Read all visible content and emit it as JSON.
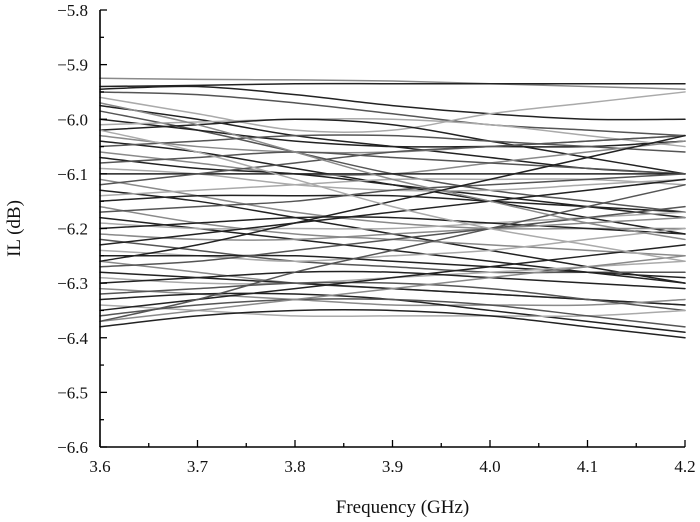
{
  "chart_data": {
    "type": "line",
    "xlabel": "Frequency (GHz)",
    "ylabel": "IL (dB)",
    "xlim": [
      3.6,
      4.2
    ],
    "ylim": [
      -6.6,
      -5.8
    ],
    "x_ticks": [
      3.6,
      3.7,
      3.8,
      3.9,
      4.0,
      4.1,
      4.2
    ],
    "x_tick_labels": [
      "3.6",
      "3.7",
      "3.8",
      "3.9",
      "4.0",
      "4.1",
      "4.2"
    ],
    "y_ticks": [
      -6.6,
      -6.5,
      -6.4,
      -6.3,
      -6.2,
      -6.1,
      -6.0,
      -5.9,
      -5.8
    ],
    "y_tick_labels": [
      "−6.6",
      "−6.5",
      "−6.4",
      "−6.3",
      "−6.2",
      "−6.1",
      "−6.0",
      "−5.9",
      "−5.8"
    ],
    "grid": false,
    "legend": false,
    "colors": {
      "dark": "#222222",
      "mid": "#555555",
      "light": "#8a8a8a",
      "lighter": "#aaaaaa"
    },
    "x": [
      3.6,
      3.7,
      3.8,
      3.9,
      4.0,
      4.1,
      4.2
    ],
    "series": [
      {
        "color": "light",
        "values": [
          -5.925,
          -5.927,
          -5.928,
          -5.93,
          -5.935,
          -5.94,
          -5.945
        ]
      },
      {
        "color": "dark",
        "values": [
          -5.94,
          -5.938,
          -5.935,
          -5.935,
          -5.935,
          -5.935,
          -5.935
        ]
      },
      {
        "color": "dark",
        "values": [
          -5.945,
          -5.94,
          -5.955,
          -5.975,
          -5.99,
          -6.0,
          -6.0
        ]
      },
      {
        "color": "mid",
        "values": [
          -5.95,
          -5.955,
          -5.97,
          -5.99,
          -6.01,
          -6.02,
          -6.03
        ]
      },
      {
        "color": "lighter",
        "values": [
          -5.96,
          -5.99,
          -6.02,
          -6.02,
          -5.99,
          -5.97,
          -5.95
        ]
      },
      {
        "color": "dark",
        "values": [
          -5.975,
          -6.0,
          -6.03,
          -6.05,
          -6.07,
          -6.09,
          -6.1
        ]
      },
      {
        "color": "mid",
        "values": [
          -5.985,
          -6.02,
          -6.06,
          -6.1,
          -6.13,
          -6.15,
          -6.17
        ]
      },
      {
        "color": "dark",
        "values": [
          -6.0,
          -6.02,
          -6.04,
          -6.05,
          -6.05,
          -6.05,
          -6.04
        ]
      },
      {
        "color": "lighter",
        "values": [
          -6.01,
          -6.005,
          -6.0,
          -6.0,
          -6.01,
          -6.03,
          -6.05
        ]
      },
      {
        "color": "dark",
        "values": [
          -6.02,
          -6.01,
          -6.0,
          -6.01,
          -6.04,
          -6.07,
          -6.1
        ]
      },
      {
        "color": "light",
        "values": [
          -6.03,
          -6.05,
          -6.06,
          -6.06,
          -6.05,
          -6.04,
          -6.03
        ]
      },
      {
        "color": "dark",
        "values": [
          -6.04,
          -6.06,
          -6.09,
          -6.12,
          -6.15,
          -6.18,
          -6.21
        ]
      },
      {
        "color": "mid",
        "values": [
          -6.05,
          -6.04,
          -6.03,
          -6.03,
          -6.04,
          -6.05,
          -6.06
        ]
      },
      {
        "color": "light",
        "values": [
          -6.06,
          -6.08,
          -6.1,
          -6.1,
          -6.08,
          -6.06,
          -6.04
        ]
      },
      {
        "color": "dark",
        "values": [
          -6.07,
          -6.09,
          -6.1,
          -6.12,
          -6.14,
          -6.16,
          -6.18
        ]
      },
      {
        "color": "mid",
        "values": [
          -6.08,
          -6.07,
          -6.06,
          -6.07,
          -6.08,
          -6.09,
          -6.1
        ]
      },
      {
        "color": "lighter",
        "values": [
          -6.09,
          -6.1,
          -6.12,
          -6.13,
          -6.13,
          -6.12,
          -6.11
        ]
      },
      {
        "color": "dark",
        "values": [
          -6.1,
          -6.1,
          -6.1,
          -6.1,
          -6.1,
          -6.1,
          -6.1
        ]
      },
      {
        "color": "light",
        "values": [
          -6.11,
          -6.14,
          -6.17,
          -6.19,
          -6.2,
          -6.2,
          -6.2
        ]
      },
      {
        "color": "mid",
        "values": [
          -6.12,
          -6.1,
          -6.08,
          -6.06,
          -6.05,
          -6.04,
          -6.03
        ]
      },
      {
        "color": "dark",
        "values": [
          -6.13,
          -6.15,
          -6.18,
          -6.21,
          -6.24,
          -6.27,
          -6.3
        ]
      },
      {
        "color": "lighter",
        "values": [
          -6.14,
          -6.13,
          -6.12,
          -6.11,
          -6.11,
          -6.11,
          -6.12
        ]
      },
      {
        "color": "dark",
        "values": [
          -6.15,
          -6.14,
          -6.14,
          -6.14,
          -6.15,
          -6.16,
          -6.17
        ]
      },
      {
        "color": "light",
        "values": [
          -6.16,
          -6.19,
          -6.21,
          -6.22,
          -6.23,
          -6.24,
          -6.25
        ]
      },
      {
        "color": "mid",
        "values": [
          -6.17,
          -6.16,
          -6.15,
          -6.13,
          -6.12,
          -6.11,
          -6.1
        ]
      },
      {
        "color": "dark",
        "values": [
          -6.18,
          -6.2,
          -6.22,
          -6.24,
          -6.26,
          -6.28,
          -6.3
        ]
      },
      {
        "color": "lighter",
        "values": [
          -6.19,
          -6.2,
          -6.2,
          -6.2,
          -6.19,
          -6.18,
          -6.17
        ]
      },
      {
        "color": "dark",
        "values": [
          -6.2,
          -6.19,
          -6.18,
          -6.18,
          -6.19,
          -6.2,
          -6.21
        ]
      },
      {
        "color": "light",
        "values": [
          -6.21,
          -6.22,
          -6.22,
          -6.21,
          -6.2,
          -6.19,
          -6.18
        ]
      },
      {
        "color": "mid",
        "values": [
          -6.22,
          -6.24,
          -6.26,
          -6.27,
          -6.28,
          -6.28,
          -6.28
        ]
      },
      {
        "color": "dark",
        "values": [
          -6.23,
          -6.21,
          -6.19,
          -6.17,
          -6.15,
          -6.13,
          -6.11
        ]
      },
      {
        "color": "lighter",
        "values": [
          -6.24,
          -6.25,
          -6.26,
          -6.25,
          -6.24,
          -6.22,
          -6.2
        ]
      },
      {
        "color": "dark",
        "values": [
          -6.25,
          -6.25,
          -6.25,
          -6.26,
          -6.27,
          -6.28,
          -6.29
        ]
      },
      {
        "color": "light",
        "values": [
          -6.26,
          -6.28,
          -6.3,
          -6.31,
          -6.32,
          -6.33,
          -6.34
        ]
      },
      {
        "color": "mid",
        "values": [
          -6.27,
          -6.26,
          -6.24,
          -6.22,
          -6.2,
          -6.18,
          -6.16
        ]
      },
      {
        "color": "dark",
        "values": [
          -6.28,
          -6.29,
          -6.3,
          -6.31,
          -6.32,
          -6.33,
          -6.34
        ]
      },
      {
        "color": "lighter",
        "values": [
          -6.29,
          -6.3,
          -6.3,
          -6.29,
          -6.28,
          -6.27,
          -6.26
        ]
      },
      {
        "color": "dark",
        "values": [
          -6.3,
          -6.29,
          -6.28,
          -6.28,
          -6.29,
          -6.3,
          -6.31
        ]
      },
      {
        "color": "light",
        "values": [
          -6.31,
          -6.32,
          -6.33,
          -6.34,
          -6.34,
          -6.34,
          -6.33
        ]
      },
      {
        "color": "mid",
        "values": [
          -6.32,
          -6.31,
          -6.3,
          -6.3,
          -6.31,
          -6.33,
          -6.35
        ]
      },
      {
        "color": "dark",
        "values": [
          -6.33,
          -6.32,
          -6.32,
          -6.33,
          -6.35,
          -6.37,
          -6.39
        ]
      },
      {
        "color": "lighter",
        "values": [
          -6.34,
          -6.35,
          -6.36,
          -6.36,
          -6.36,
          -6.36,
          -6.35
        ]
      },
      {
        "color": "dark",
        "values": [
          -6.35,
          -6.33,
          -6.31,
          -6.29,
          -6.27,
          -6.25,
          -6.23
        ]
      },
      {
        "color": "mid",
        "values": [
          -6.36,
          -6.34,
          -6.33,
          -6.33,
          -6.34,
          -6.36,
          -6.38
        ]
      },
      {
        "color": "light",
        "values": [
          -6.37,
          -6.35,
          -6.33,
          -6.31,
          -6.29,
          -6.27,
          -6.25
        ]
      },
      {
        "color": "dark",
        "values": [
          -6.38,
          -6.36,
          -6.35,
          -6.35,
          -6.36,
          -6.38,
          -6.4
        ]
      },
      {
        "color": "mid",
        "values": [
          -6.37,
          -6.33,
          -6.28,
          -6.24,
          -6.2,
          -6.16,
          -6.12
        ]
      },
      {
        "color": "light",
        "values": [
          -5.97,
          -6.01,
          -6.06,
          -6.11,
          -6.15,
          -6.19,
          -6.22
        ]
      },
      {
        "color": "dark",
        "values": [
          -6.26,
          -6.23,
          -6.19,
          -6.15,
          -6.11,
          -6.07,
          -6.03
        ]
      },
      {
        "color": "lighter",
        "values": [
          -6.02,
          -6.06,
          -6.11,
          -6.16,
          -6.2,
          -6.23,
          -6.26
        ]
      }
    ]
  }
}
